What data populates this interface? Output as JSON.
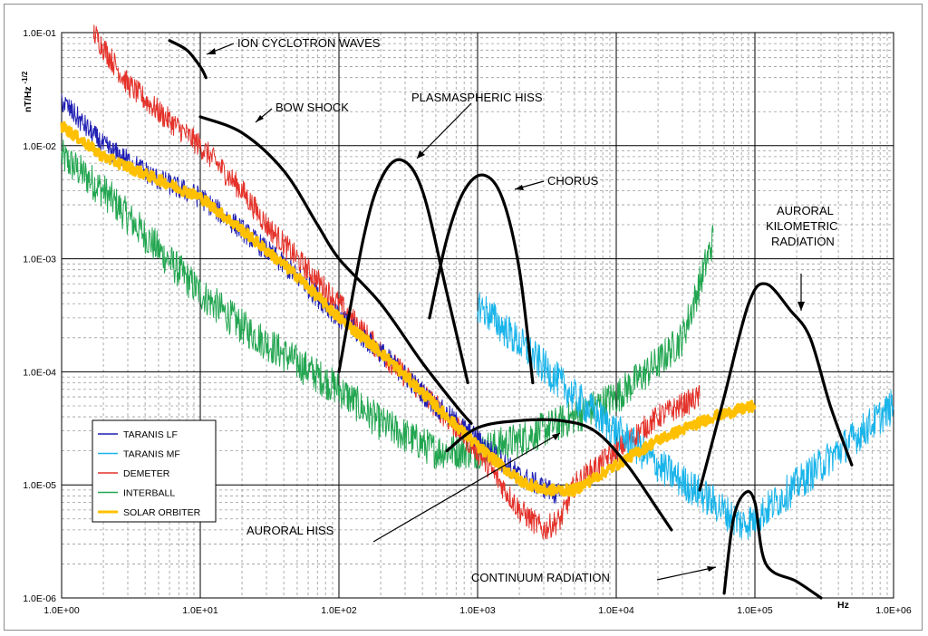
{
  "chart_data": {
    "type": "line",
    "x_scale": "log",
    "y_scale": "log",
    "xlim": [
      1,
      1000000
    ],
    "ylim": [
      1e-06,
      0.1
    ],
    "xlabel": "Hz",
    "ylabel": "nT/Hz-1/2",
    "x_ticks": [
      "1.0E+00",
      "1.0E+01",
      "1.0E+02",
      "1.0E+03",
      "1.0E+04",
      "1.0E+05",
      "1.0E+06"
    ],
    "y_ticks": [
      "1.0E-06",
      "1.0E-05",
      "1.0E-04",
      "1.0E-03",
      "1.0E-02",
      "1.0E-01"
    ],
    "grid": true,
    "legend_position": "bottom-left",
    "series": [
      {
        "name": "TARANIS LF",
        "color": "#1f1fb4",
        "points": [
          [
            1,
            0.025
          ],
          [
            2,
            0.01
          ],
          [
            5,
            0.005
          ],
          [
            10,
            0.0035
          ],
          [
            20,
            0.0018
          ],
          [
            50,
            0.0007
          ],
          [
            100,
            0.0003
          ],
          [
            200,
            0.00015
          ],
          [
            500,
            5e-05
          ],
          [
            1000,
            2.5e-05
          ],
          [
            2000,
            1.2e-05
          ],
          [
            4000,
            8e-06
          ]
        ]
      },
      {
        "name": "TARANIS MF",
        "color": "#19b4ea",
        "points": [
          [
            1000,
            0.0004
          ],
          [
            2000,
            0.00018
          ],
          [
            5000,
            6e-05
          ],
          [
            10000,
            3e-05
          ],
          [
            20000,
            1.5e-05
          ],
          [
            50000,
            7e-06
          ],
          [
            80000,
            4.5e-06
          ],
          [
            100000,
            5e-06
          ],
          [
            200000,
            1e-05
          ],
          [
            500000,
            2.5e-05
          ],
          [
            1000000,
            5e-05
          ]
        ]
      },
      {
        "name": "DEMETER",
        "color": "#e4322a",
        "points": [
          [
            1.7,
            0.1
          ],
          [
            3,
            0.035
          ],
          [
            5,
            0.02
          ],
          [
            10,
            0.01
          ],
          [
            20,
            0.004
          ],
          [
            30,
            0.002
          ],
          [
            50,
            0.001
          ],
          [
            100,
            0.0004
          ],
          [
            200,
            0.00015
          ],
          [
            500,
            5e-05
          ],
          [
            1000,
            2e-05
          ],
          [
            2000,
            6e-06
          ],
          [
            3000,
            4e-06
          ],
          [
            4000,
            5e-06
          ],
          [
            5000,
            1e-05
          ],
          [
            10000,
            2e-05
          ],
          [
            20000,
            4e-05
          ],
          [
            40000,
            6e-05
          ]
        ]
      },
      {
        "name": "INTERBALL",
        "color": "#23a651",
        "points": [
          [
            1,
            0.008
          ],
          [
            2,
            0.004
          ],
          [
            5,
            0.0012
          ],
          [
            10,
            0.0005
          ],
          [
            20,
            0.00025
          ],
          [
            50,
            0.00012
          ],
          [
            100,
            7e-05
          ],
          [
            200,
            3.5e-05
          ],
          [
            500,
            2e-05
          ],
          [
            1000,
            2e-05
          ],
          [
            2000,
            2.5e-05
          ],
          [
            5000,
            4e-05
          ],
          [
            10000,
            6e-05
          ],
          [
            20000,
            0.00012
          ],
          [
            30000,
            0.0002
          ],
          [
            40000,
            0.0006
          ],
          [
            50000,
            0.0015
          ]
        ]
      },
      {
        "name": "SOLAR ORBITER",
        "color": "#ffc000",
        "points": [
          [
            1,
            0.015
          ],
          [
            2,
            0.008
          ],
          [
            5,
            0.005
          ],
          [
            10,
            0.0035
          ],
          [
            20,
            0.0018
          ],
          [
            50,
            0.0007
          ],
          [
            100,
            0.0003
          ],
          [
            200,
            0.00015
          ],
          [
            500,
            5e-05
          ],
          [
            1000,
            2.2e-05
          ],
          [
            2000,
            1.1e-05
          ],
          [
            3000,
            9e-06
          ],
          [
            5000,
            9e-06
          ],
          [
            10000,
            1.5e-05
          ],
          [
            20000,
            2.5e-05
          ],
          [
            50000,
            4e-05
          ],
          [
            100000,
            5e-05
          ]
        ]
      }
    ],
    "annotations": [
      {
        "label": "ION CYCLOTRON WAVES",
        "color": "#000000",
        "curve": [
          [
            6,
            0.085
          ],
          [
            8,
            0.07
          ],
          [
            10,
            0.05
          ],
          [
            11,
            0.04
          ]
        ]
      },
      {
        "label": "BOW SHOCK",
        "color": "#000000",
        "curve": [
          [
            10,
            0.018
          ],
          [
            20,
            0.013
          ],
          [
            40,
            0.006
          ],
          [
            70,
            0.002
          ],
          [
            100,
            0.001
          ],
          [
            200,
            0.0004
          ],
          [
            400,
            0.00012
          ],
          [
            700,
            5e-05
          ],
          [
            900,
            3.5e-05
          ]
        ]
      },
      {
        "label": "PLASMASPHERIC HISS",
        "color": "#000000",
        "curve": [
          [
            100,
            0.0001
          ],
          [
            150,
            0.0015
          ],
          [
            200,
            0.005
          ],
          [
            280,
            0.0075
          ],
          [
            400,
            0.004
          ],
          [
            600,
            0.0005
          ],
          [
            850,
            8e-05
          ]
        ]
      },
      {
        "label": "CHORUS",
        "color": "#000000",
        "curve": [
          [
            450,
            0.0003
          ],
          [
            600,
            0.0015
          ],
          [
            800,
            0.004
          ],
          [
            1100,
            0.0055
          ],
          [
            1500,
            0.0035
          ],
          [
            2000,
            0.0008
          ],
          [
            2500,
            8e-05
          ]
        ]
      },
      {
        "label": "AURORAL KILOMETRIC RADIATION",
        "color": "#000000",
        "curve": [
          [
            40000,
            9e-06
          ],
          [
            60000,
            6e-05
          ],
          [
            90000,
            0.0004
          ],
          [
            120000,
            0.0006
          ],
          [
            180000,
            0.00035
          ],
          [
            250000,
            0.0002
          ],
          [
            350000,
            5e-05
          ],
          [
            500000,
            1.5e-05
          ]
        ]
      },
      {
        "label": "AURORAL HISS",
        "color": "#000000",
        "curve": [
          [
            600,
            2e-05
          ],
          [
            1000,
            3.2e-05
          ],
          [
            2000,
            3.7e-05
          ],
          [
            4000,
            3.7e-05
          ],
          [
            7000,
            3e-05
          ],
          [
            12000,
            1.5e-05
          ],
          [
            20000,
            6e-06
          ],
          [
            25000,
            4e-06
          ]
        ]
      },
      {
        "label": "CONTINUUM RADIATION",
        "color": "#000000",
        "curve": [
          [
            60000,
            1.1e-06
          ],
          [
            70000,
            5e-06
          ],
          [
            85000,
            8.5e-06
          ],
          [
            100000,
            7e-06
          ],
          [
            120000,
            2e-06
          ],
          [
            200000,
            1.4e-06
          ],
          [
            300000,
            1e-06
          ]
        ]
      }
    ]
  },
  "labels": {
    "ion_cyclotron": "ION CYCLOTRON WAVES",
    "bow_shock": "BOW SHOCK",
    "plasmaspheric_hiss": "PLASMASPHERIC HISS",
    "chorus": "CHORUS",
    "akr_line1": "AURORAL",
    "akr_line2": "KILOMETRIC",
    "akr_line3": "RADIATION",
    "auroral_hiss": "AURORAL HISS",
    "continuum": "CONTINUUM RADIATION"
  }
}
